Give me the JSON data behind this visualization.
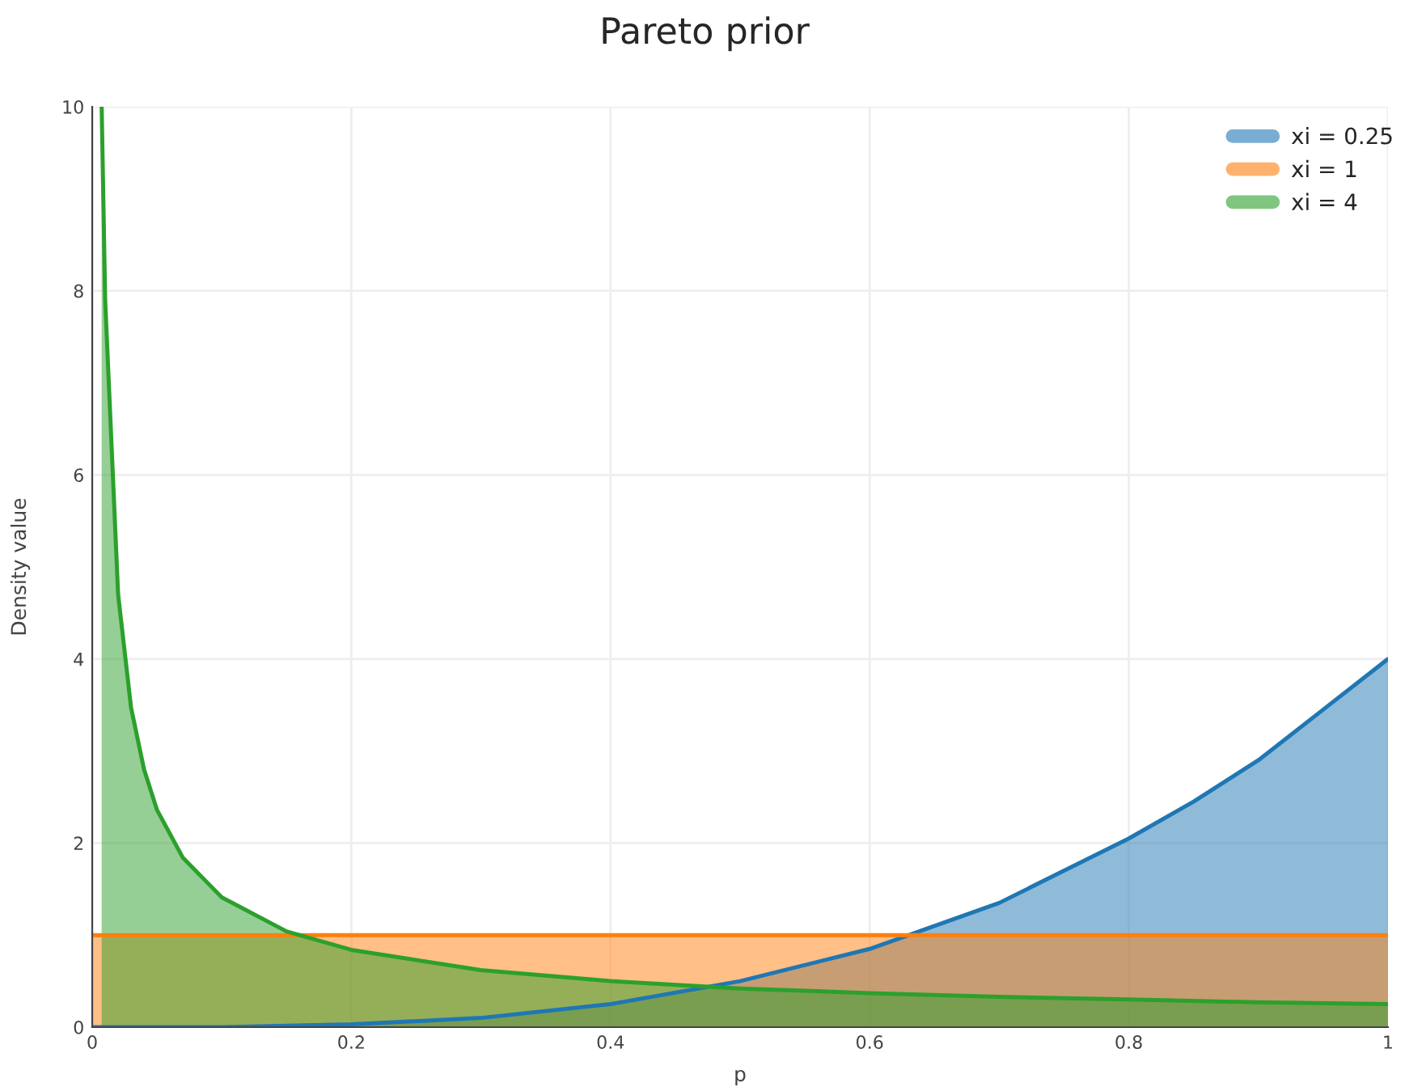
{
  "chart_data": {
    "type": "area",
    "title": "Pareto prior",
    "xlabel": "p",
    "ylabel": "Density value",
    "xlim": [
      0,
      1
    ],
    "ylim": [
      0,
      10
    ],
    "xticks": [
      0,
      0.2,
      0.4,
      0.6,
      0.8,
      1
    ],
    "yticks": [
      0,
      2,
      4,
      6,
      8,
      10
    ],
    "grid": true,
    "legend": "top right",
    "series": [
      {
        "name": "xi = 0.25",
        "color": "#1f77b4",
        "x": [
          0,
          0.1,
          0.2,
          0.3,
          0.4,
          0.5,
          0.6,
          0.7,
          0.75,
          0.8,
          0.85,
          0.9,
          0.95,
          1
        ],
        "values": [
          0,
          0,
          0.03,
          0.1,
          0.25,
          0.5,
          0.85,
          1.35,
          1.7,
          2.05,
          2.45,
          2.9,
          3.45,
          4
        ]
      },
      {
        "name": "xi = 1",
        "color": "#ff7f0e",
        "x": [
          0,
          0.5,
          1
        ],
        "values": [
          1,
          1,
          1
        ]
      },
      {
        "name": "xi = 4",
        "color": "#2ca02c",
        "x": [
          0.0073,
          0.01,
          0.02,
          0.03,
          0.04,
          0.05,
          0.07,
          0.1,
          0.15,
          0.2,
          0.3,
          0.4,
          0.5,
          0.6,
          0.7,
          0.8,
          0.9,
          1
        ],
        "values": [
          10,
          7.9,
          4.7,
          3.47,
          2.8,
          2.36,
          1.84,
          1.41,
          1.04,
          0.84,
          0.62,
          0.5,
          0.42,
          0.37,
          0.33,
          0.3,
          0.27,
          0.25
        ]
      }
    ]
  }
}
